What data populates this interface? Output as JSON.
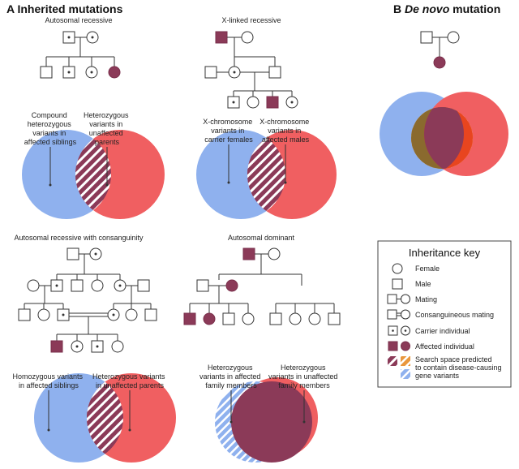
{
  "panel_a": {
    "letter": "A",
    "title": "Inherited mutations",
    "autosomal_recessive": {
      "title": "Autosomal recessive",
      "left_label": [
        "Compound",
        "heterozygous",
        "variants in",
        "affected siblings"
      ],
      "right_label": [
        "Heterozygous",
        "variants in",
        "unaffected",
        "parents"
      ]
    },
    "x_linked": {
      "title": "X-linked recessive",
      "left_label": [
        "X-chromosome",
        "variants in",
        "carrier females"
      ],
      "right_label": [
        "X-chromosome",
        "variants in",
        "affected males"
      ]
    },
    "consanguinity": {
      "title": "Autosomal recessive with consanguinity",
      "left_label": [
        "Homozygous variants",
        "in affected siblings"
      ],
      "right_label": [
        "Heterozygous variants",
        "in unaffected parents"
      ]
    },
    "dominant": {
      "title": "Autosomal dominant",
      "left_label": [
        "Heterozygous",
        "variants in affected",
        "family members"
      ],
      "right_label": [
        "Heterozygous",
        "variants in unaffected",
        "family members"
      ]
    }
  },
  "panel_b": {
    "letter": "B",
    "title_italic": "De novo",
    "title_rest": " mutation"
  },
  "key": {
    "title": "Inheritance key",
    "items": [
      {
        "symbol": "circle",
        "label": [
          "Female"
        ]
      },
      {
        "symbol": "square",
        "label": [
          "Male"
        ]
      },
      {
        "symbol": "mating",
        "label": [
          "Mating"
        ]
      },
      {
        "symbol": "consanguineous",
        "label": [
          "Consanguineous mating"
        ]
      },
      {
        "symbol": "carrier",
        "label": [
          "Carrier individual"
        ]
      },
      {
        "symbol": "affected",
        "label": [
          "Affected individual"
        ]
      },
      {
        "symbol": "hatch-purple-orange",
        "label": [
          "Search space predicted",
          "to contain disease-causing",
          "gene variants"
        ]
      }
    ]
  },
  "colors": {
    "blue": "#8fb1ee",
    "red": "#f05f61",
    "affected": "#8b3a58",
    "overlap_olive": "#8a6a2e",
    "hatch_orange": "#e9973d",
    "hatch_blue": "#8fb1ee"
  }
}
